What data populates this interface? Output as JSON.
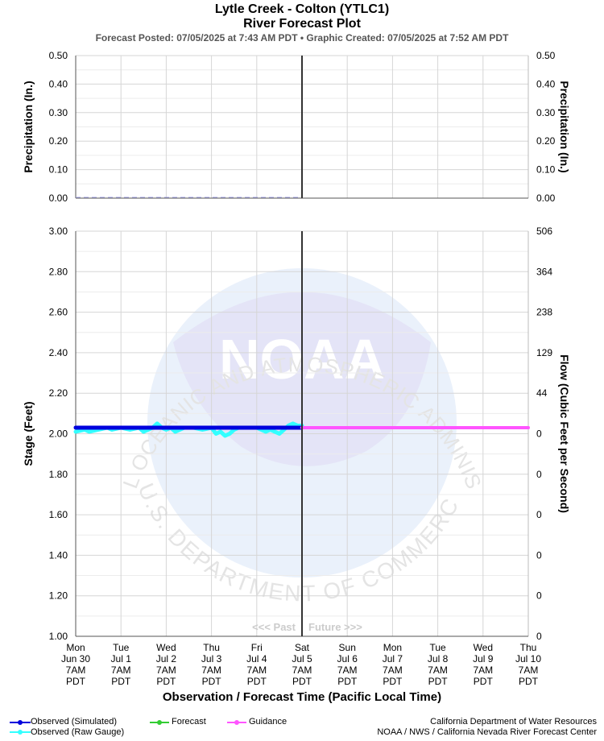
{
  "header": {
    "title": "Lytle Creek - Colton (YTLC1)",
    "subtitle": "River Forecast Plot",
    "posted": "Forecast Posted: 07/05/2025 at 7:43 AM PDT  •  Graphic Created: 07/05/2025 at 7:52 AM PDT"
  },
  "watermark": {
    "arc_top": "NATIONAL OCEANIC AND ATMOSPHERIC ADMINISTRATION",
    "arc_bottom": "U.S. DEPARTMENT OF COMMERCE",
    "center": "NOAA"
  },
  "colors": {
    "observed_sim": "#0000dd",
    "observed_raw": "#33ffff",
    "forecast": "#33cc33",
    "guidance": "#ff55ff",
    "grid": "#d6d6d6",
    "now_line": "#333333"
  },
  "chart_data": [
    {
      "type": "line",
      "name": "precipitation",
      "ylabel": "Precipitation (In.)",
      "ylabel_right": "Precipitation (In.)",
      "ylim": [
        0,
        0.5
      ],
      "yticks": [
        "0.00",
        "0.10",
        "0.20",
        "0.30",
        "0.40",
        "0.50"
      ],
      "grid": true,
      "values": [
        0,
        0,
        0,
        0,
        0,
        0,
        0,
        0,
        0,
        0
      ]
    },
    {
      "type": "line",
      "name": "stage",
      "ylabel": "Stage (Feet)",
      "ylabel_right": "Flow (Cubic Feet per Second)",
      "ylim": [
        1.0,
        3.0
      ],
      "yticks": [
        "1.00",
        "1.20",
        "1.40",
        "1.60",
        "1.80",
        "2.00",
        "2.20",
        "2.40",
        "2.60",
        "2.80",
        "3.00"
      ],
      "yticks_right": [
        "0",
        "0",
        "0",
        "0",
        "0",
        "0",
        "44",
        "129",
        "238",
        "364",
        "506"
      ],
      "xlabel": "Observation / Forecast Time (Pacific Local Time)",
      "x_days": [
        {
          "day": "Mon",
          "date": "Jun 30",
          "time": "7AM",
          "tz": "PDT"
        },
        {
          "day": "Tue",
          "date": "Jul 1",
          "time": "7AM",
          "tz": "PDT"
        },
        {
          "day": "Wed",
          "date": "Jul 2",
          "time": "7AM",
          "tz": "PDT"
        },
        {
          "day": "Thu",
          "date": "Jul 3",
          "time": "7AM",
          "tz": "PDT"
        },
        {
          "day": "Fri",
          "date": "Jul 4",
          "time": "7AM",
          "tz": "PDT"
        },
        {
          "day": "Sat",
          "date": "Jul 5",
          "time": "7AM",
          "tz": "PDT"
        },
        {
          "day": "Sun",
          "date": "Jul 6",
          "time": "7AM",
          "tz": "PDT"
        },
        {
          "day": "Mon",
          "date": "Jul 7",
          "time": "7AM",
          "tz": "PDT"
        },
        {
          "day": "Tue",
          "date": "Jul 8",
          "time": "7AM",
          "tz": "PDT"
        },
        {
          "day": "Wed",
          "date": "Jul 9",
          "time": "7AM",
          "tz": "PDT"
        },
        {
          "day": "Thu",
          "date": "Jul 10",
          "time": "7AM",
          "tz": "PDT"
        }
      ],
      "now_day_index": 5,
      "past_label": "<<< Past",
      "future_label": "Future >>>",
      "series": [
        {
          "name": "Observed (Simulated)",
          "x_days": [
            0,
            5
          ],
          "values": [
            2.03,
            2.03
          ]
        },
        {
          "name": "Observed (Raw Gauge)",
          "x_days": [
            0,
            0.2,
            0.3,
            0.5,
            0.7,
            0.8,
            1.0,
            1.2,
            1.4,
            1.5,
            1.6,
            1.7,
            1.8,
            1.9,
            2.0,
            2.1,
            2.2,
            2.3,
            2.4,
            2.6,
            2.8,
            3.0,
            3.1,
            3.2,
            3.3,
            3.4,
            3.5,
            3.6,
            3.8,
            4.0,
            4.1,
            4.2,
            4.3,
            4.5,
            4.6,
            4.7,
            4.8,
            4.9,
            5.0
          ],
          "values": [
            2.01,
            2.02,
            2.01,
            2.02,
            2.03,
            2.02,
            2.03,
            2.02,
            2.03,
            2.01,
            2.02,
            2.03,
            2.05,
            2.03,
            2.02,
            2.03,
            2.01,
            2.02,
            2.03,
            2.03,
            2.02,
            2.03,
            2.0,
            2.01,
            1.99,
            2.0,
            2.02,
            2.03,
            2.03,
            2.03,
            2.02,
            2.01,
            2.02,
            2.0,
            2.02,
            2.04,
            2.05,
            2.04,
            2.04
          ]
        },
        {
          "name": "Forecast",
          "x_days": [],
          "values": []
        },
        {
          "name": "Guidance",
          "x_days": [
            5,
            10
          ],
          "values": [
            2.03,
            2.03
          ]
        }
      ]
    }
  ],
  "legend": {
    "observed_sim": "Observed (Simulated)",
    "observed_raw": "Observed (Raw Gauge)",
    "forecast": "Forecast",
    "guidance": "Guidance"
  },
  "credits": {
    "line1": "California Department of Water Resources",
    "line2": "NOAA / NWS / California Nevada River Forecast Center"
  }
}
